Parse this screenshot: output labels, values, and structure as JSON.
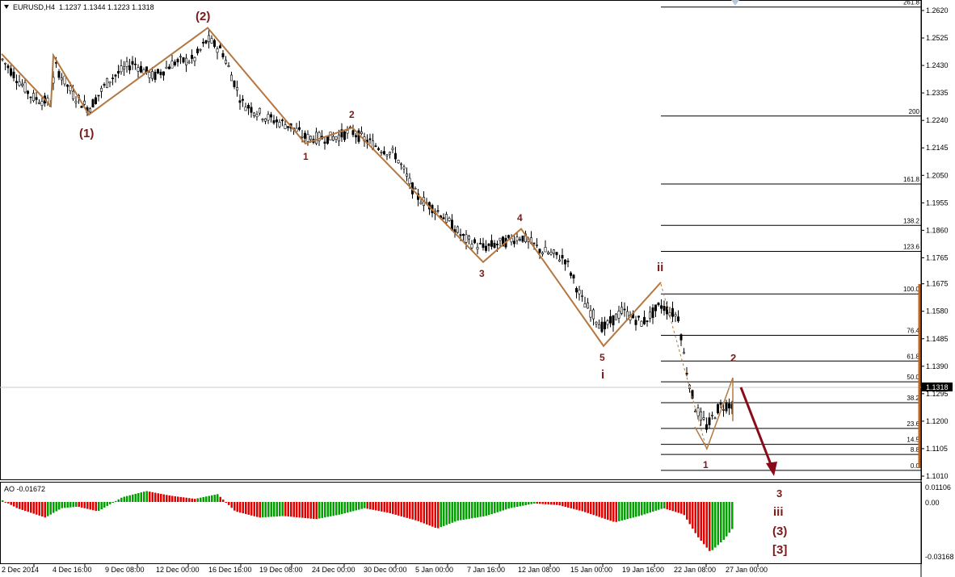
{
  "header": {
    "symbol": "EURUSD,H4",
    "ohlc": "1.1237 1.1344 1.1223 1.1318"
  },
  "price_axis": {
    "labels": [
      "1.2620",
      "1.2525",
      "1.2430",
      "1.2335",
      "1.2240",
      "1.2145",
      "1.2050",
      "1.1955",
      "1.1860",
      "1.1765",
      "1.1675",
      "1.1580",
      "1.1485",
      "1.1390",
      "1.1295",
      "1.1200",
      "1.1105",
      "1.1010"
    ],
    "current_price": "1.1318"
  },
  "time_axis": {
    "labels": [
      "2 Dec 2014",
      "4 Dec 16:00",
      "9 Dec 08:00",
      "12 Dec 00:00",
      "16 Dec 16:00",
      "19 Dec 08:00",
      "24 Dec 00:00",
      "30 Dec 00:00",
      "5 Jan 00:00",
      "7 Jan 16:00",
      "12 Jan 08:00",
      "15 Jan 00:00",
      "19 Jan 16:00",
      "22 Jan 08:00",
      "27 Jan 00:00"
    ]
  },
  "fibonacci": [
    {
      "label": "261.8",
      "price": 1.2632
    },
    {
      "label": "200",
      "price": 1.2255
    },
    {
      "label": "161.8",
      "price": 1.202
    },
    {
      "label": "138.2",
      "price": 1.1877
    },
    {
      "label": "123.6",
      "price": 1.1787
    },
    {
      "label": "100.0",
      "price": 1.164
    },
    {
      "label": "76.4",
      "price": 1.1497
    },
    {
      "label": "61.8",
      "price": 1.1408
    },
    {
      "label": "50.0",
      "price": 1.1336
    },
    {
      "label": "38.2",
      "price": 1.1264
    },
    {
      "label": "23.6",
      "price": 1.1175
    },
    {
      "label": "14.5",
      "price": 1.112
    },
    {
      "label": "8.8",
      "price": 1.1085
    },
    {
      "label": "0.0",
      "price": 1.103
    }
  ],
  "wave_labels": [
    {
      "text": "(1)",
      "size": "large"
    },
    {
      "text": "(2)",
      "size": "large"
    },
    {
      "text": "1",
      "size": "small"
    },
    {
      "text": "2",
      "size": "small"
    },
    {
      "text": "3",
      "size": "small"
    },
    {
      "text": "4",
      "size": "small"
    },
    {
      "text": "5",
      "size": "small"
    },
    {
      "text": "i",
      "size": "large"
    },
    {
      "text": "ii",
      "size": "large"
    },
    {
      "text": "2",
      "size": "small"
    },
    {
      "text": "1",
      "size": "small"
    },
    {
      "text": "3",
      "size": "small"
    },
    {
      "text": "iii",
      "size": "large"
    },
    {
      "text": "(3)",
      "size": "large"
    },
    {
      "text": "[3]",
      "size": "large"
    }
  ],
  "oscillator": {
    "name": "AO -0.01672",
    "axis_labels": [
      "0.01106",
      "0.00",
      "-0.03168"
    ]
  },
  "colors": {
    "candle": "#000000",
    "wave_line": "#B5773F",
    "wave_text": "#7A1A1A",
    "arrow": "#8B0A1A",
    "ao_up": "#00A000",
    "ao_down": "#E00000",
    "grid_line": "#000000"
  },
  "chart_data": {
    "type": "candlestick",
    "title": "EURUSD,H4",
    "ylim": [
      1.096,
      1.266
    ],
    "x": [
      "2 Dec 2014",
      "4 Dec 16:00",
      "9 Dec 08:00",
      "12 Dec 00:00",
      "16 Dec 16:00",
      "19 Dec 08:00",
      "24 Dec 00:00",
      "30 Dec 00:00",
      "5 Jan 00:00",
      "7 Jan 16:00",
      "12 Jan 08:00",
      "15 Jan 00:00",
      "19 Jan 16:00",
      "22 Jan 08:00",
      "27 Jan 00:00"
    ],
    "wave_path": [
      {
        "label": "start",
        "price": 1.2465
      },
      {
        "label": "(1)",
        "price": 1.228
      },
      {
        "label": "(2)",
        "price": 1.256
      },
      {
        "label": "1",
        "price": 1.216
      },
      {
        "label": "2",
        "price": 1.2215
      },
      {
        "label": "3",
        "price": 1.175
      },
      {
        "label": "4",
        "price": 1.1865
      },
      {
        "label": "5",
        "price": 1.146
      },
      {
        "label": "ii",
        "price": 1.168
      },
      {
        "label": "1",
        "price": 1.111
      },
      {
        "label": "2",
        "price": 1.135
      }
    ]
  }
}
